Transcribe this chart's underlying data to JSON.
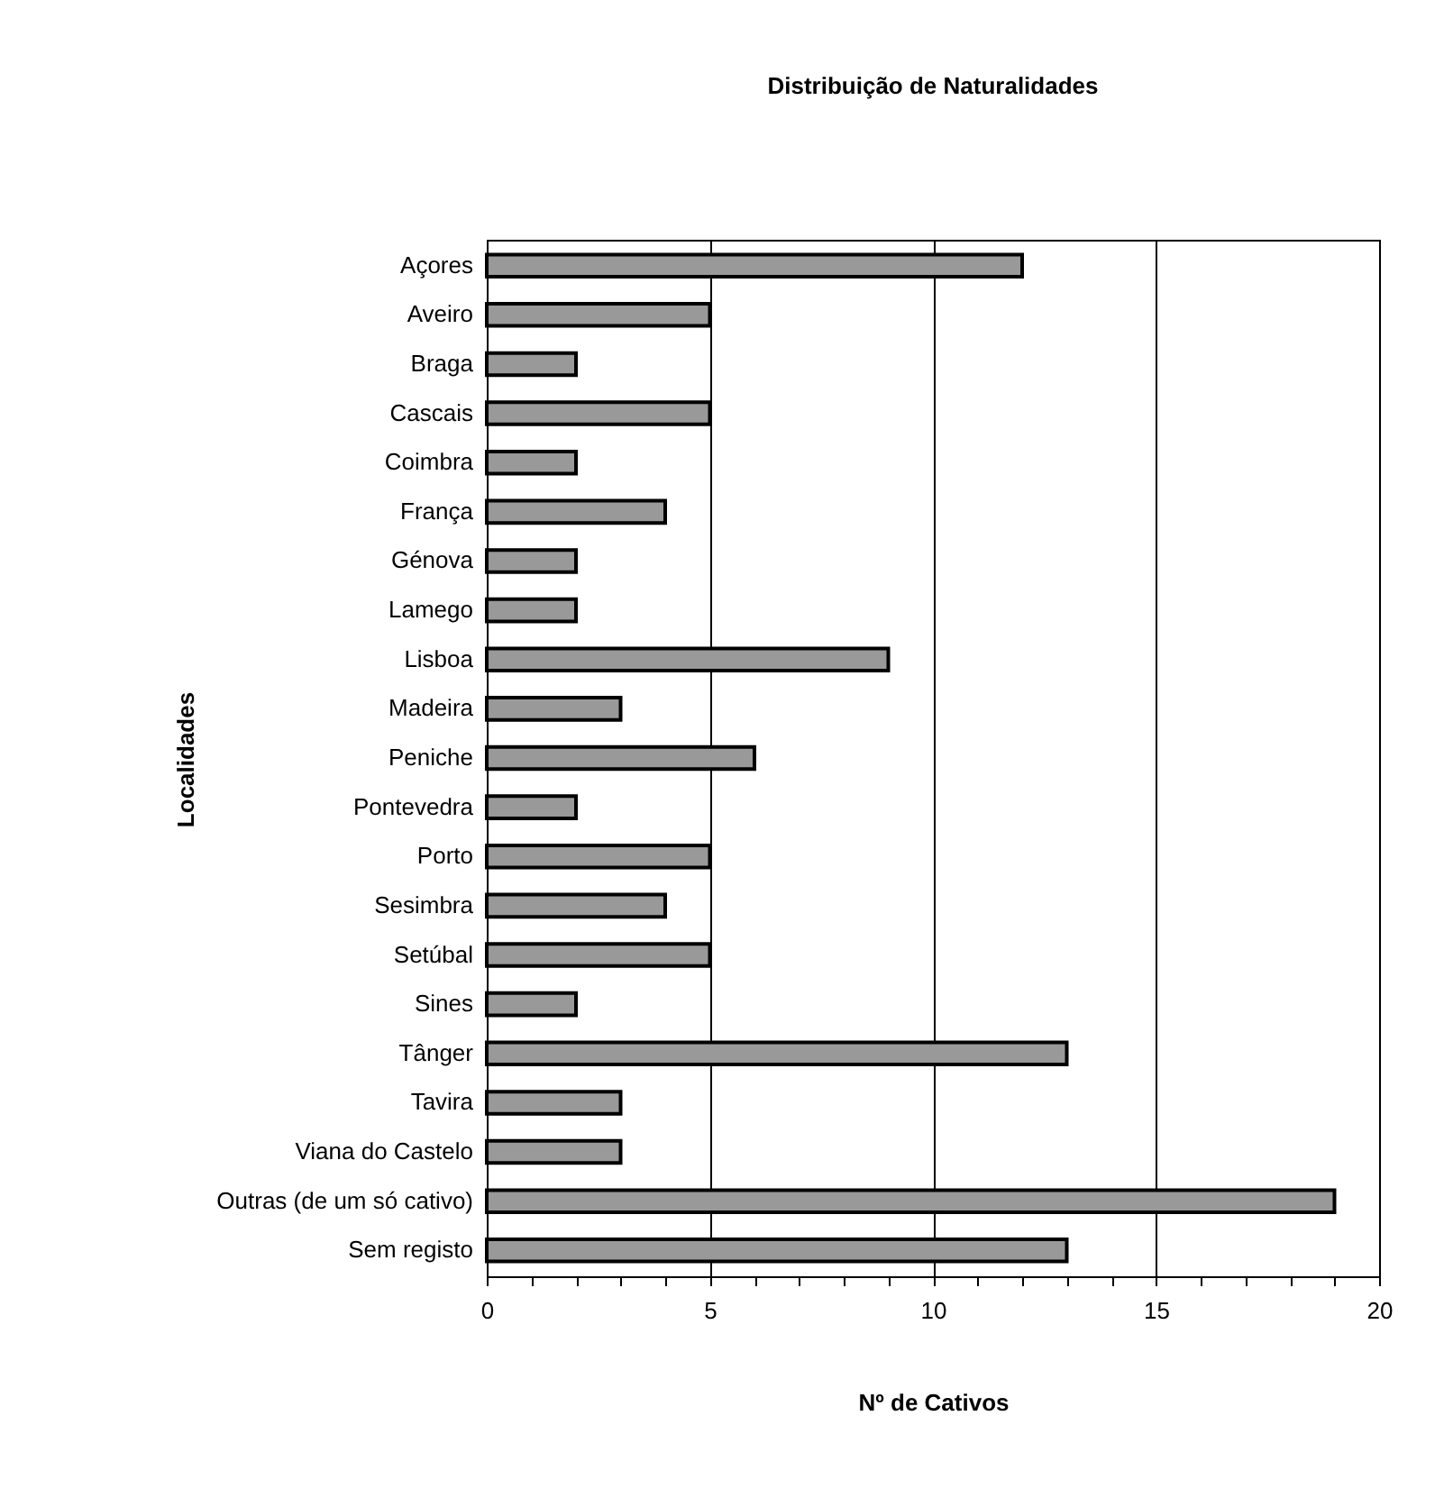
{
  "chart_data": {
    "type": "bar",
    "orientation": "horizontal",
    "title": "Distribuição de Naturalidades",
    "xlabel": "Nº de Cativos",
    "ylabel": "Localidades",
    "categories": [
      "Açores",
      "Aveiro",
      "Braga",
      "Cascais",
      "Coimbra",
      "França",
      "Génova",
      "Lamego",
      "Lisboa",
      "Madeira",
      "Peniche",
      "Pontevedra",
      "Porto",
      "Sesimbra",
      "Setúbal",
      "Sines",
      "Tânger",
      "Tavira",
      "Viana do Castelo",
      "Outras (de um só cativo)",
      "Sem registo"
    ],
    "values": [
      12,
      5,
      2,
      5,
      2,
      4,
      2,
      2,
      9,
      3,
      6,
      2,
      5,
      4,
      5,
      2,
      13,
      3,
      3,
      19,
      13
    ],
    "color": "#999999",
    "xlim": [
      0,
      20
    ],
    "xticks": [
      0,
      {
        "value": 1,
        "label": null
      },
      {
        "value": 2,
        "label": null
      },
      {
        "value": 3,
        "label": null
      },
      {
        "value": 4,
        "label": null
      },
      5,
      {
        "value": 6,
        "label": null
      },
      {
        "value": 7,
        "label": null
      },
      {
        "value": 8,
        "label": null
      },
      {
        "value": 9,
        "label": null
      },
      10,
      {
        "value": 11,
        "label": null
      },
      {
        "value": 12,
        "label": null
      },
      {
        "value": 13,
        "label": null
      },
      {
        "value": 14,
        "label": null
      },
      15,
      {
        "value": 16,
        "label": null
      },
      {
        "value": 17,
        "label": null
      },
      {
        "value": 18,
        "label": null
      },
      {
        "value": 19,
        "label": null
      },
      20
    ],
    "grid": "x"
  }
}
